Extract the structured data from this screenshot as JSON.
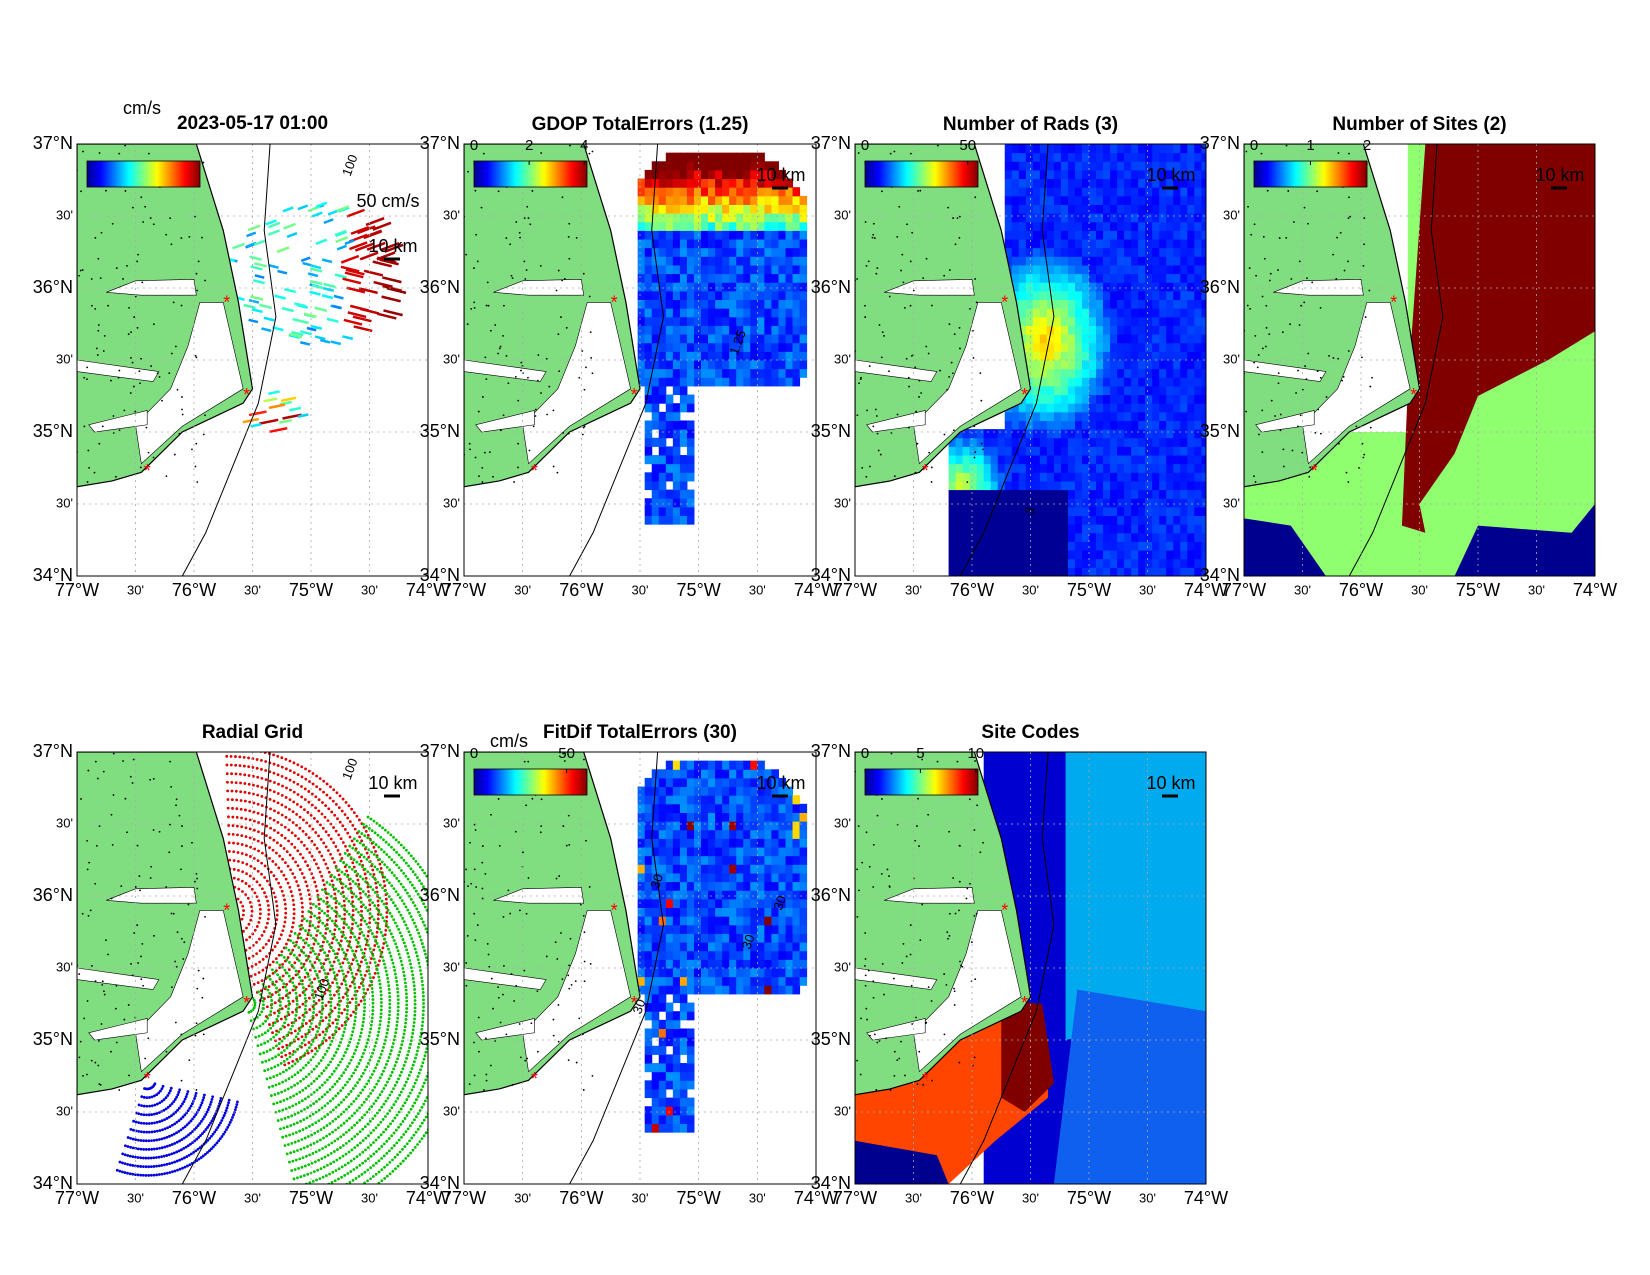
{
  "axes": {
    "lat_labels": [
      "37°N",
      "30'",
      "36°N",
      "30'",
      "35°N",
      "30'",
      "34°N"
    ],
    "lon_labels": [
      "77°W",
      "30'",
      "76°W",
      "30'",
      "75°W",
      "30'",
      "74°W"
    ]
  },
  "panels": [
    {
      "title": "2023-05-17 01:00",
      "colorbar": {
        "unit": "cm/s"
      },
      "vector_scale_label": "50 cm/s",
      "scale_label": "10 km",
      "contour_labels": [
        "100"
      ]
    },
    {
      "title": "GDOP TotalErrors (1.25)",
      "colorbar": {
        "clim": [
          0,
          4.1
        ],
        "ticks": [
          0,
          2,
          4
        ]
      },
      "scale_label": "10 km",
      "contour_labels": [
        "1.25"
      ]
    },
    {
      "title": "Number of Rads (3)",
      "colorbar": {
        "clim": [
          0,
          55
        ],
        "ticks": [
          0,
          50
        ]
      },
      "scale_label": "10 km",
      "contour_labels": [
        "3"
      ]
    },
    {
      "title": "Number of Sites (2)",
      "colorbar": {
        "clim": [
          0,
          2
        ],
        "ticks": [
          0,
          1,
          2
        ]
      },
      "scale_label": "10 km",
      "contour_labels": []
    },
    {
      "title": "Radial Grid",
      "scale_label": "10 km",
      "contour_labels": [
        "100",
        "100"
      ]
    },
    {
      "title": "FitDif TotalErrors (30)",
      "colorbar": {
        "unit": "cm/s",
        "clim": [
          0,
          61
        ],
        "ticks": [
          0,
          50
        ]
      },
      "scale_label": "10 km",
      "contour_labels": [
        "30",
        "30",
        "30",
        "30"
      ]
    },
    {
      "title": "Site Codes",
      "colorbar": {
        "clim": [
          0,
          10.2
        ],
        "ticks": [
          0,
          5,
          10
        ]
      },
      "scale_label": "10 km",
      "contour_labels": []
    }
  ]
}
